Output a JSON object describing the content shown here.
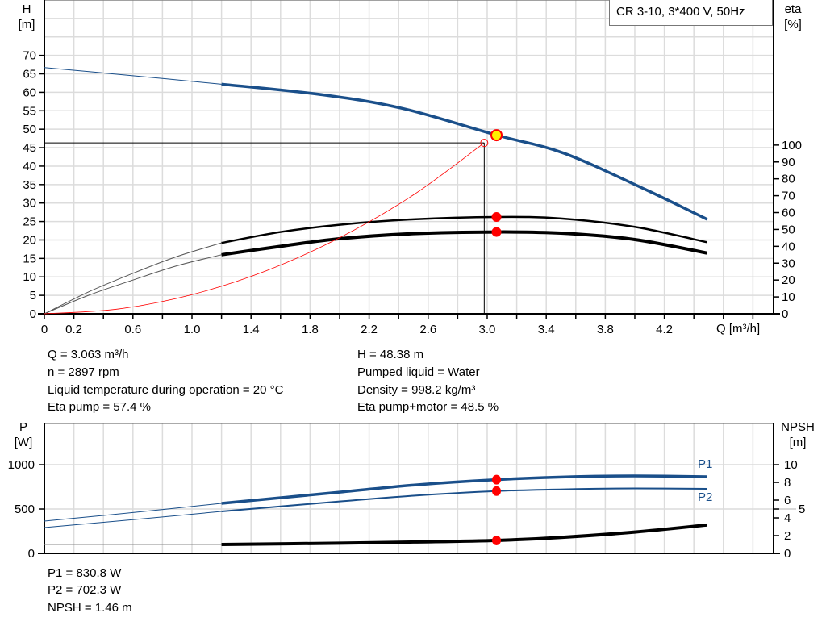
{
  "title": "CR 3-10, 3*400 V, 50Hz",
  "colors": {
    "head": "#1a4f8a",
    "eta": "#000000",
    "system": "#ff0000",
    "power": "#1a4f8a",
    "npsh": "#000000",
    "marker": "#ff0000",
    "duty_fill": "#ffee00",
    "grid": "#dcdcdc"
  },
  "chart_data": [
    {
      "type": "line",
      "xlabel": "Q [m³/h]",
      "ylabel_left": {
        "name": "H",
        "unit": "[m]"
      },
      "ylabel_right": {
        "name": "eta",
        "unit": "[%]"
      },
      "xlim": [
        0,
        4.94
      ],
      "ylim_left": [
        0,
        85
      ],
      "ylim_right": [
        0,
        186
      ],
      "x_ticks": [
        "0",
        "0.2",
        "0.6",
        "1.0",
        "1.4",
        "1.8",
        "2.2",
        "2.6",
        "3.0",
        "3.4",
        "3.8",
        "4.2"
      ],
      "y_left_ticks": [
        "0",
        "5",
        "10",
        "15",
        "20",
        "25",
        "30",
        "35",
        "40",
        "45",
        "50",
        "55",
        "60",
        "65",
        "70"
      ],
      "y_right_ticks": [
        "0",
        "10",
        "20",
        "30",
        "40",
        "50",
        "60",
        "70",
        "80",
        "90",
        "100"
      ],
      "grid": true,
      "series": [
        {
          "axis": "left",
          "points": [
            [
              0,
              66.7
            ],
            [
              0.6,
              64.5
            ],
            [
              1.2,
              62.2
            ],
            [
              1.89,
              59.3
            ],
            [
              2.43,
              55.6
            ],
            [
              3.063,
              48.4
            ],
            [
              3.52,
              43.5
            ],
            [
              4.07,
              33.7
            ],
            [
              4.49,
              25.6
            ]
          ]
        },
        {
          "axis": "right",
          "points": [
            [
              0,
              0
            ],
            [
              0.3,
              13
            ],
            [
              0.6,
              24
            ],
            [
              0.9,
              34
            ],
            [
              1.2,
              42
            ],
            [
              1.6,
              48.5
            ],
            [
              2.0,
              52.8
            ],
            [
              2.5,
              56
            ],
            [
              3.063,
              57.4
            ],
            [
              3.5,
              56.5
            ],
            [
              4.0,
              51.5
            ],
            [
              4.49,
              42.4
            ]
          ]
        },
        {
          "axis": "right",
          "points": [
            [
              0,
              0
            ],
            [
              0.3,
              11
            ],
            [
              0.6,
              20
            ],
            [
              0.9,
              28.5
            ],
            [
              1.2,
              35
            ],
            [
              1.6,
              40
            ],
            [
              2.0,
              44.5
            ],
            [
              2.5,
              47.5
            ],
            [
              3.063,
              48.5
            ],
            [
              3.5,
              47.8
            ],
            [
              4.0,
              44
            ],
            [
              4.49,
              36
            ]
          ]
        },
        {
          "axis": "left",
          "system_curve": true,
          "points": [
            [
              0,
              0
            ],
            [
              0.5,
              1.3
            ],
            [
              1.0,
              5.2
            ],
            [
              1.5,
              11.6
            ],
            [
              2.0,
              20.6
            ],
            [
              2.5,
              32.2
            ],
            [
              2.98,
              46.3
            ]
          ]
        }
      ],
      "duty_point": {
        "q": 3.063,
        "h": 48.38
      },
      "requested_point": {
        "q": 2.98,
        "h": 46.3
      },
      "eta_points": [
        57.4,
        48.5
      ]
    },
    {
      "type": "line",
      "ylabel_left": {
        "name": "P",
        "unit": "[W]"
      },
      "ylabel_right": {
        "name": "NPSH",
        "unit": "[m]"
      },
      "xlim": [
        0,
        4.94
      ],
      "ylim_left": [
        0,
        1464
      ],
      "ylim_right": [
        0,
        14.64
      ],
      "y_left_ticks": [
        "0",
        "500",
        "1000"
      ],
      "y_right_ticks": [
        "0",
        "2",
        "4",
        "5",
        "6",
        "8",
        "10"
      ],
      "grid": true,
      "series": [
        {
          "name": "P1",
          "axis": "left",
          "points": [
            [
              0,
              364
            ],
            [
              0.6,
              460
            ],
            [
              1.2,
              564
            ],
            [
              2.0,
              690
            ],
            [
              2.5,
              770
            ],
            [
              3.063,
              830.8
            ],
            [
              3.6,
              865
            ],
            [
              4.0,
              873
            ],
            [
              4.49,
              864
            ]
          ]
        },
        {
          "name": "P2",
          "axis": "left",
          "points": [
            [
              0,
              291
            ],
            [
              0.6,
              380
            ],
            [
              1.2,
              473
            ],
            [
              2.0,
              585
            ],
            [
              2.5,
              650
            ],
            [
              3.063,
              702.3
            ],
            [
              3.6,
              725
            ],
            [
              4.0,
              732
            ],
            [
              4.49,
              727
            ]
          ]
        },
        {
          "axis": "right",
          "points": [
            [
              0,
              1.0
            ],
            [
              1.2,
              1.0
            ],
            [
              2.0,
              1.15
            ],
            [
              2.5,
              1.28
            ],
            [
              3.063,
              1.46
            ],
            [
              3.5,
              1.8
            ],
            [
              4.0,
              2.4
            ],
            [
              4.49,
              3.2
            ]
          ]
        }
      ]
    }
  ],
  "info_left": [
    "Q = 3.063 m³/h",
    "n = 2897 rpm",
    "Liquid temperature during operation = 20 °C",
    "Eta pump = 57.4 %"
  ],
  "info_right": [
    "H = 48.38 m",
    "Pumped liquid = Water",
    "Density = 998.2 kg/m³",
    "Eta pump+motor = 48.5 %"
  ],
  "info_bottom": [
    "P1 = 830.8 W",
    "P2 = 702.3 W",
    "NPSH = 1.46 m"
  ]
}
